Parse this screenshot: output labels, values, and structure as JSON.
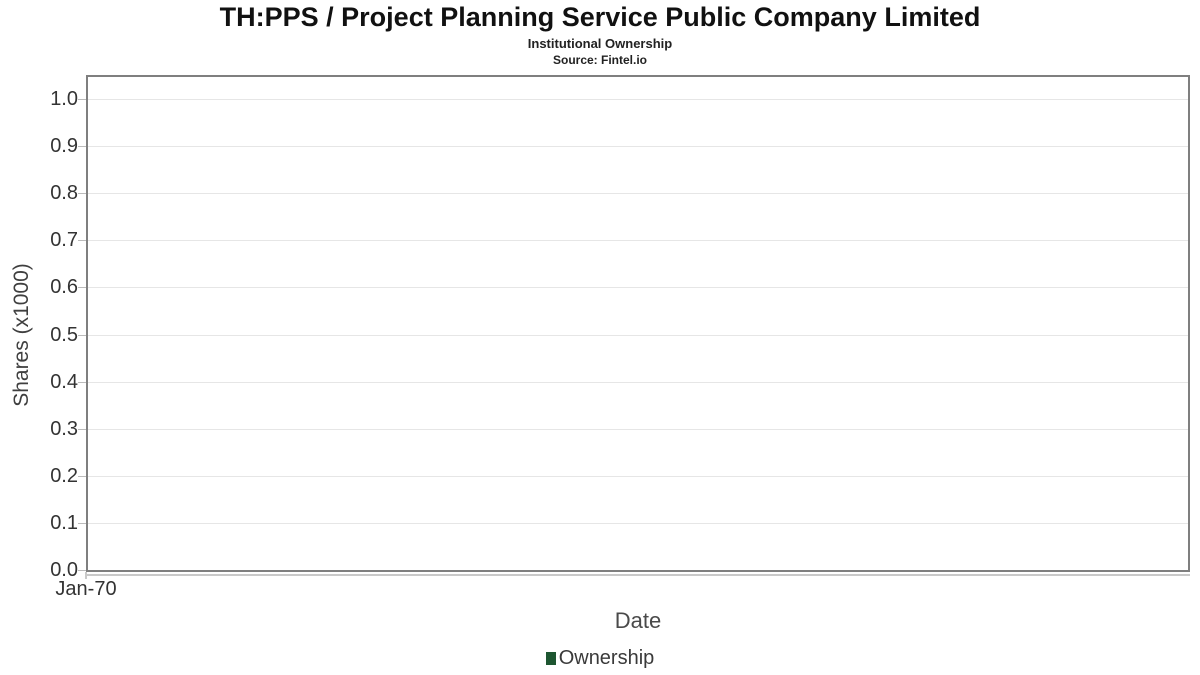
{
  "header": {
    "title": "TH:PPS / Project Planning Service Public Company Limited",
    "subtitle": "Institutional Ownership",
    "source": "Source: Fintel.io"
  },
  "chart_data": {
    "type": "line",
    "title": "TH:PPS / Project Planning Service Public Company Limited",
    "subtitle": "Institutional Ownership",
    "source": "Source: Fintel.io",
    "xlabel": "Date",
    "ylabel": "Shares (x1000)",
    "x_ticks": [
      "Jan-70"
    ],
    "y_ticks": [
      "0.0",
      "0.1",
      "0.2",
      "0.3",
      "0.4",
      "0.5",
      "0.6",
      "0.7",
      "0.8",
      "0.9",
      "1.0"
    ],
    "ylim": [
      0,
      1.05
    ],
    "grid": true,
    "legend_position": "bottom",
    "series": [
      {
        "name": "Ownership",
        "color": "#1e5631",
        "x": [],
        "values": []
      }
    ]
  },
  "colors": {
    "plot_border": "#7f7f7f",
    "gridline": "#e6e6e6",
    "axis_line": "#c9c9c9",
    "tick_mark": "#bbbbbb",
    "legend_swatch": "#1e5631"
  }
}
